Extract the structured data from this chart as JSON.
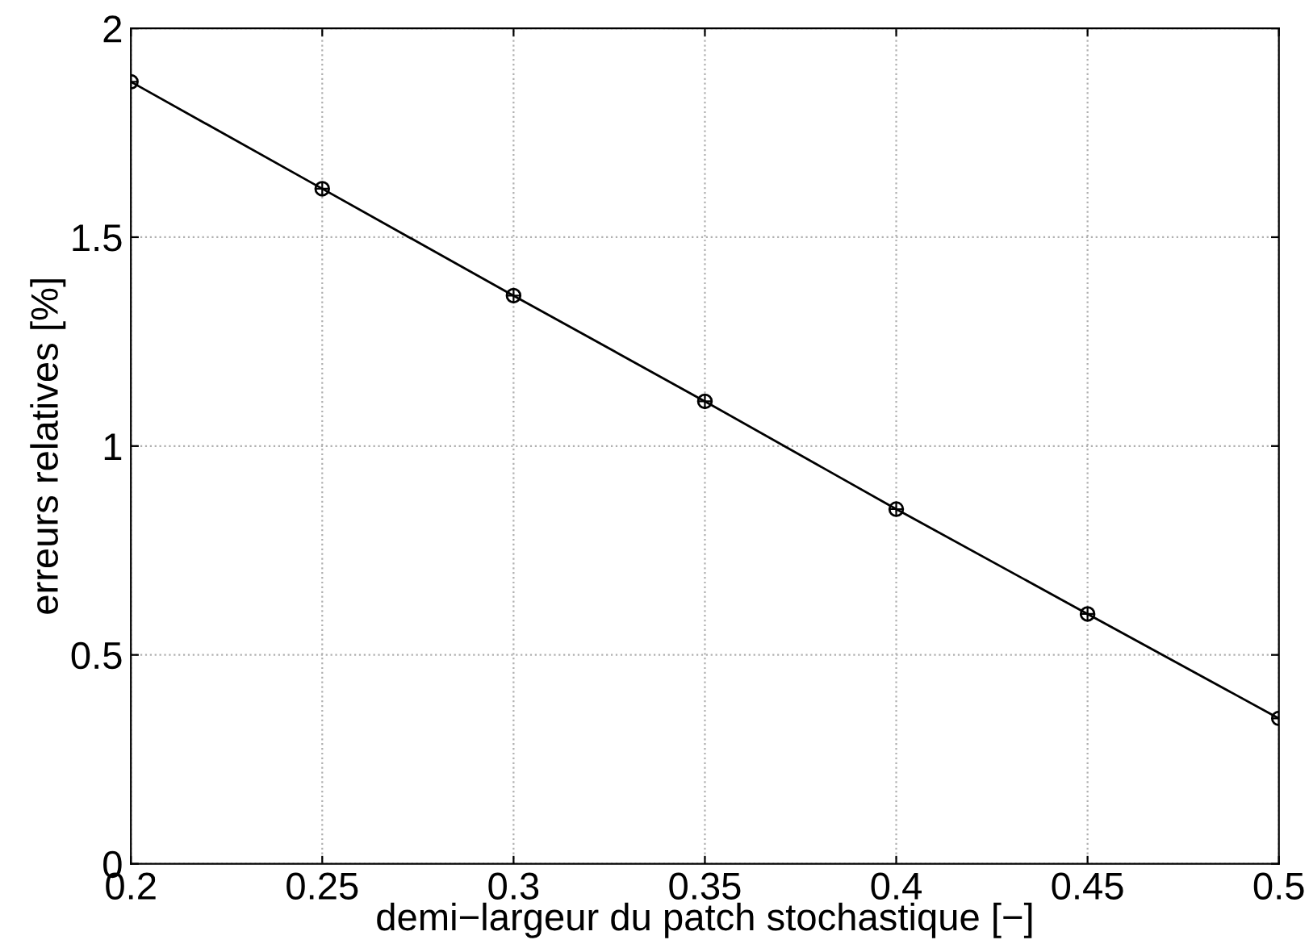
{
  "chart_data": {
    "type": "line",
    "xlabel": "demi−largeur du patch stochastique [−]",
    "ylabel": "erreurs relatives [%]",
    "x": [
      0.2,
      0.25,
      0.3,
      0.35,
      0.4,
      0.45,
      0.5
    ],
    "series": [
      {
        "color": "#000000",
        "values": [
          1.872,
          1.616,
          1.36,
          1.107,
          0.849,
          0.598,
          0.348
        ]
      }
    ],
    "xlim": [
      0.2,
      0.5
    ],
    "xticks": [
      0.2,
      0.25,
      0.3,
      0.35,
      0.4,
      0.45,
      0.5
    ],
    "ylim": [
      0,
      2
    ],
    "yticks": [
      0,
      0.5,
      1,
      1.5,
      2
    ],
    "grid": true,
    "marker": "circle",
    "line_style": "solid"
  }
}
